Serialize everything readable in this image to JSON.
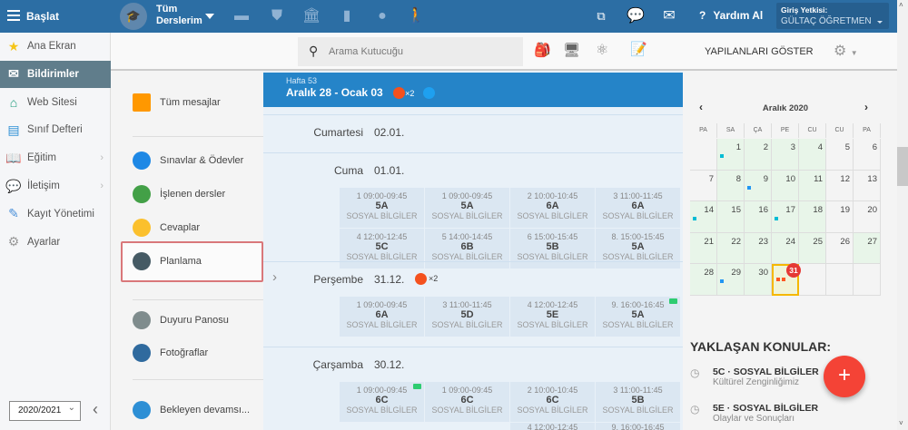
{
  "topbar": {
    "start_label": "Başlat",
    "courses_line1": "Tüm",
    "courses_line2": "Derslerim",
    "help_label": "Yardım Al",
    "auth_label": "Giriş Yetkisi:",
    "auth_user": "GÜLTAÇ ÖĞRETMEN"
  },
  "sidebar": {
    "items": [
      {
        "label": "Ana Ekran",
        "icon": "star-icon"
      },
      {
        "label": "Bildirimler",
        "icon": "envelope-icon",
        "active": true
      },
      {
        "label": "Web Sitesi",
        "icon": "home-icon"
      },
      {
        "label": "Sınıf Defteri",
        "icon": "notebook-icon"
      },
      {
        "label": "Eğitim",
        "icon": "book-icon"
      },
      {
        "label": "İletişim",
        "icon": "chat-icon"
      },
      {
        "label": "Kayıt Yönetimi",
        "icon": "pen-icon"
      },
      {
        "label": "Ayarlar",
        "icon": "gear-icon"
      }
    ],
    "year": "2020/2021"
  },
  "toolbar": {
    "search_placeholder": "Arama Kutucuğu",
    "show_done": "YAPILANLARI GÖSTER"
  },
  "submenu": {
    "items": [
      "Tüm mesajlar",
      "Sınavlar & Ödevler",
      "İşlenen dersler",
      "Cevaplar",
      "Planlama",
      "Duyuru Panosu",
      "Fotoğraflar",
      "Bekleyen devamsı..."
    ]
  },
  "week": {
    "label": "Hafta 53",
    "range": "Aralık 28 - Ocak 03",
    "count": "×2"
  },
  "days": [
    {
      "name": "Cumartesi",
      "date": "02.01.",
      "lessons": []
    },
    {
      "name": "Cuma",
      "date": "01.01.",
      "lessons": [
        {
          "time": "1 09:00-09:45",
          "cls": "5A",
          "subj": "SOSYAL BİLGİLER"
        },
        {
          "time": "1 09:00-09:45",
          "cls": "5A",
          "subj": "SOSYAL BİLGİLER"
        },
        {
          "time": "2 10:00-10:45",
          "cls": "6A",
          "subj": "SOSYAL BİLGİLER"
        },
        {
          "time": "3 11:00-11:45",
          "cls": "6A",
          "subj": "SOSYAL BİLGİLER"
        },
        {
          "time": "4 12:00-12:45",
          "cls": "5C",
          "subj": "SOSYAL BİLGİLER"
        },
        {
          "time": "5 14:00-14:45",
          "cls": "6B",
          "subj": "SOSYAL BİLGİLER"
        },
        {
          "time": "6 15:00-15:45",
          "cls": "5B",
          "subj": "SOSYAL BİLGİLER"
        },
        {
          "time": "8. 15:00-15:45",
          "cls": "5A",
          "subj": "SOSYAL BİLGİLER"
        }
      ]
    },
    {
      "name": "Perşembe",
      "date": "31.12.",
      "count": "×2",
      "lessons": [
        {
          "time": "1 09:00-09:45",
          "cls": "6A",
          "subj": "SOSYAL BİLGİLER"
        },
        {
          "time": "3 11:00-11:45",
          "cls": "5D",
          "subj": "SOSYAL BİLGİLER"
        },
        {
          "time": "4 12:00-12:45",
          "cls": "5E",
          "subj": "SOSYAL BİLGİLER"
        },
        {
          "time": "9. 16:00-16:45",
          "cls": "5A",
          "subj": "SOSYAL BİLGİLER",
          "video": true
        }
      ]
    },
    {
      "name": "Çarşamba",
      "date": "30.12.",
      "lessons": [
        {
          "time": "1 09:00-09:45",
          "cls": "6C",
          "subj": "SOSYAL BİLGİLER",
          "video": true
        },
        {
          "time": "1 09:00-09:45",
          "cls": "6C",
          "subj": "SOSYAL BİLGİLER"
        },
        {
          "time": "2 10:00-10:45",
          "cls": "6C",
          "subj": "SOSYAL BİLGİLER"
        },
        {
          "time": "3 11:00-11:45",
          "cls": "5B",
          "subj": "SOSYAL BİLGİLER"
        },
        {
          "time": "4 12:00-12:45",
          "cls": "",
          "subj": ""
        },
        {
          "time": "9. 16:00-16:45",
          "cls": "",
          "subj": ""
        }
      ]
    }
  ],
  "calendar": {
    "title": "Aralık 2020",
    "weekdays": [
      "PA",
      "SA",
      "ÇA",
      "PE",
      "CU",
      "CU",
      "PA"
    ],
    "cells": [
      "",
      "1",
      "2",
      "3",
      "4",
      "5",
      "6",
      "7",
      "8",
      "9",
      "10",
      "11",
      "12",
      "13",
      "14",
      "15",
      "16",
      "17",
      "18",
      "19",
      "20",
      "21",
      "22",
      "23",
      "24",
      "25",
      "26",
      "27",
      "28",
      "29",
      "30",
      "31",
      "",
      "",
      ""
    ],
    "green": [
      1,
      2,
      3,
      4,
      8,
      9,
      10,
      11,
      14,
      15,
      16,
      17,
      18,
      21,
      22,
      23,
      24,
      25,
      27,
      28,
      29,
      30
    ],
    "dots": {
      "1": "#00bcd4",
      "9": "#2196f3",
      "14": "#00bcd4",
      "17": "#00bcd4",
      "29": "#2196f3"
    },
    "today": 31,
    "today_badge": "31"
  },
  "upcoming": {
    "title": "YAKLAŞAN KONULAR:",
    "items": [
      {
        "title": "5C · SOSYAL BİLGİLER",
        "sub": "Kültürel Zenginliğimiz"
      },
      {
        "title": "5E · SOSYAL BİLGİLER",
        "sub": "Olaylar ve Sonuçları"
      }
    ]
  },
  "colors": {
    "topbar": "#2c6ea4",
    "week_header": "#2584c8",
    "fab": "#f44336",
    "accent_badge": "#f4511e"
  }
}
